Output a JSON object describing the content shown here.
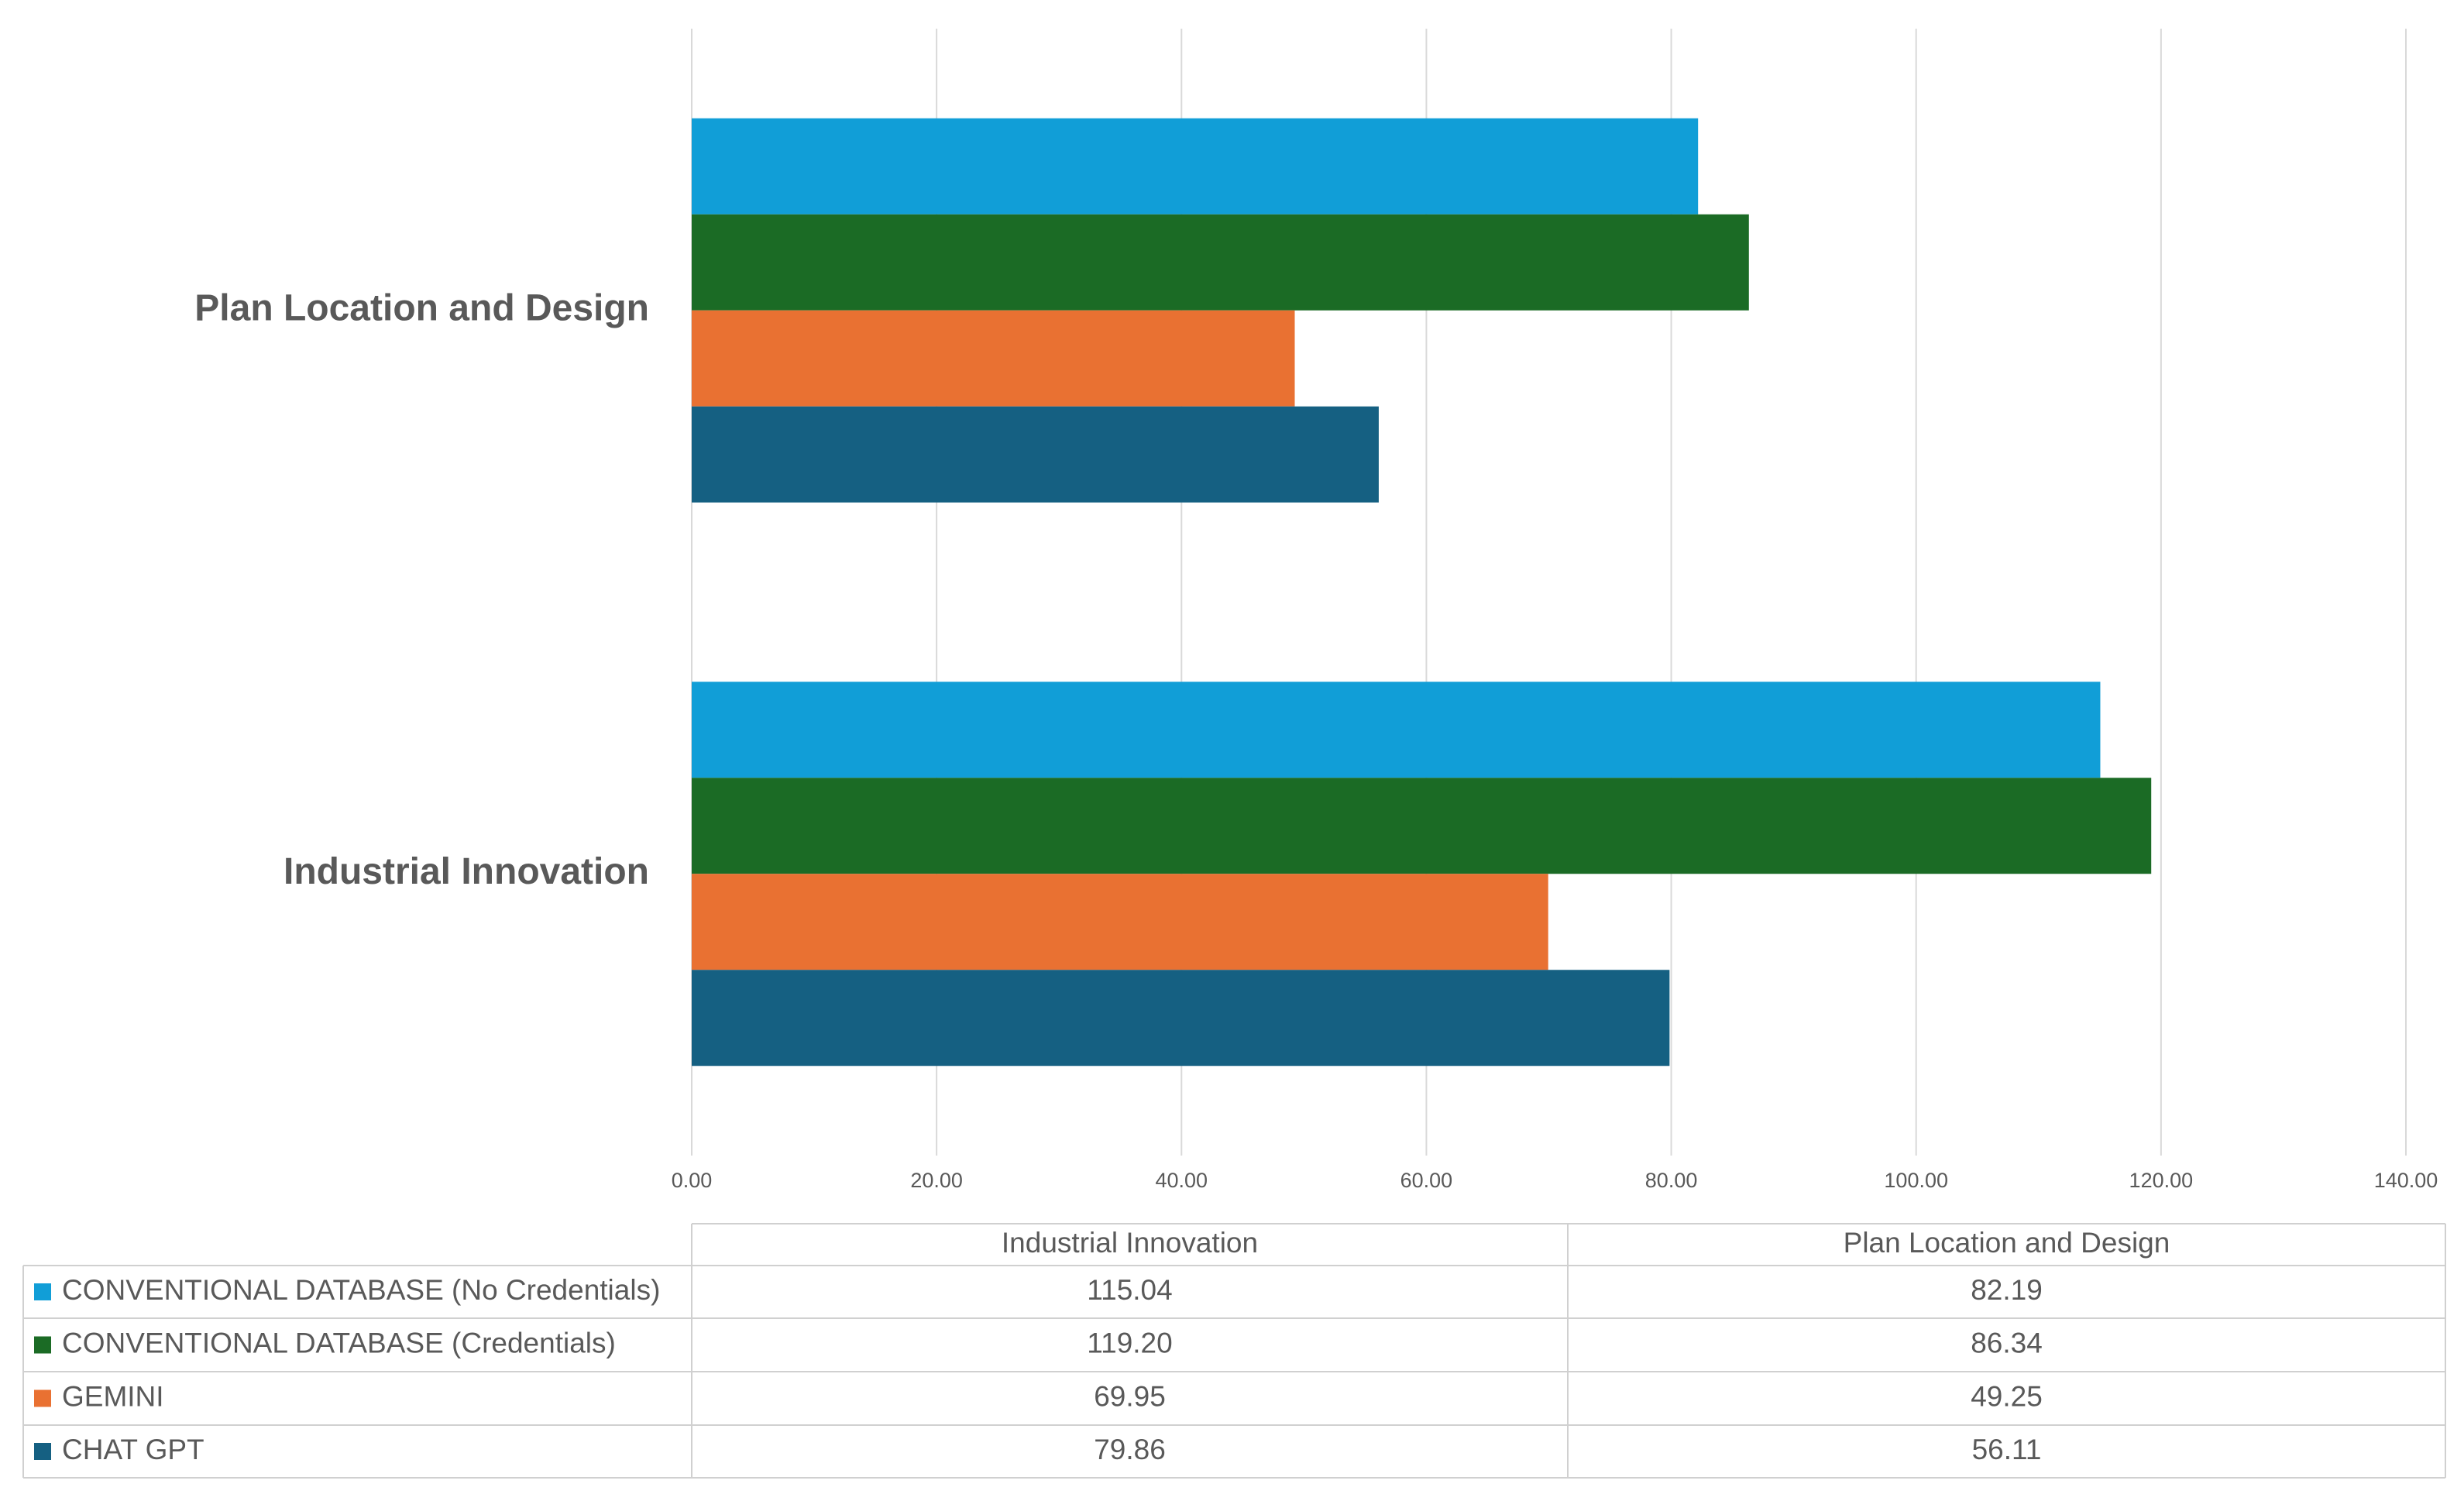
{
  "chart_data": {
    "type": "bar",
    "orientation": "horizontal",
    "categories": [
      "Industrial Innovation",
      "Plan Location and Design"
    ],
    "series": [
      {
        "name": "CONVENTIONAL DATABASE (No Credentials)",
        "color": "#119ed7",
        "values": [
          115.04,
          82.19
        ],
        "value_labels": [
          "115.04",
          "82.19"
        ]
      },
      {
        "name": "CONVENTIONAL DATABASE (Credentials)",
        "color": "#1b6b25",
        "values": [
          119.2,
          86.34
        ],
        "value_labels": [
          "119.20",
          "86.34"
        ]
      },
      {
        "name": "GEMINI",
        "color": "#e97132",
        "values": [
          69.95,
          49.25
        ],
        "value_labels": [
          "69.95",
          "49.25"
        ]
      },
      {
        "name": "CHAT GPT",
        "color": "#156082",
        "values": [
          79.86,
          56.11
        ],
        "value_labels": [
          "79.86",
          "56.11"
        ]
      }
    ],
    "xlim": [
      0,
      140
    ],
    "xticks": [
      {
        "value": 0,
        "label": "0.00"
      },
      {
        "value": 20,
        "label": "20.00"
      },
      {
        "value": 40,
        "label": "40.00"
      },
      {
        "value": 60,
        "label": "60.00"
      },
      {
        "value": 80,
        "label": "80.00"
      },
      {
        "value": 100,
        "label": "100.00"
      },
      {
        "value": 120,
        "label": "120.00"
      },
      {
        "value": 140,
        "label": "140.00"
      }
    ],
    "grid": true,
    "data_table": true
  }
}
